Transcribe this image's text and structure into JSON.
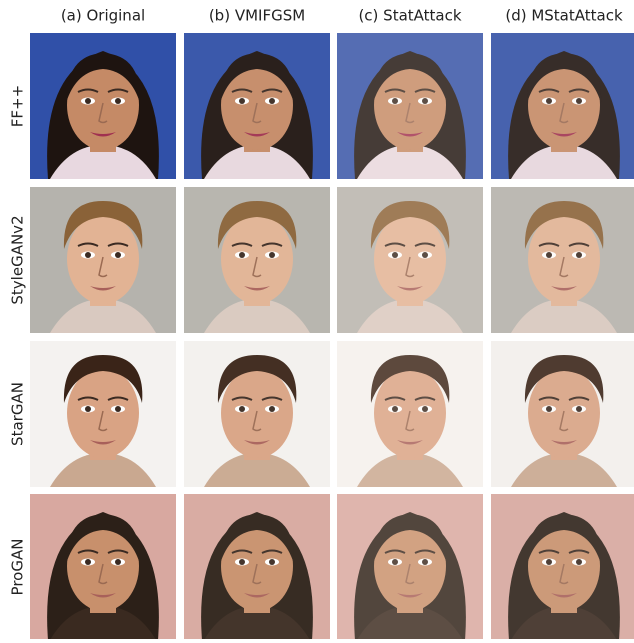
{
  "figure": {
    "columns": [
      "(a) Original",
      "(b) VMIFGSM",
      "(c) StatAttack",
      "(d) MStatAttack"
    ],
    "rows": [
      "FF++",
      "StyleGANv2",
      "StarGAN",
      "ProGAN"
    ]
  }
}
